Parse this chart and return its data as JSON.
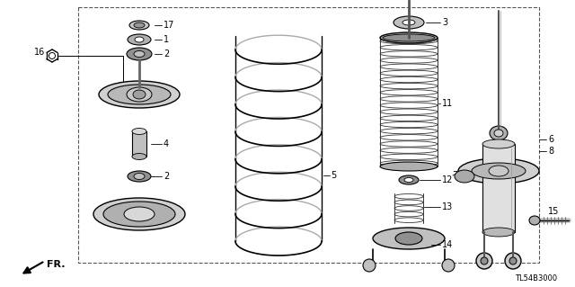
{
  "background_color": "#ffffff",
  "line_color": "#000000",
  "title_code": "TL54B3000",
  "fr_label": "FR.",
  "fig_w": 6.4,
  "fig_h": 3.19,
  "dpi": 100
}
